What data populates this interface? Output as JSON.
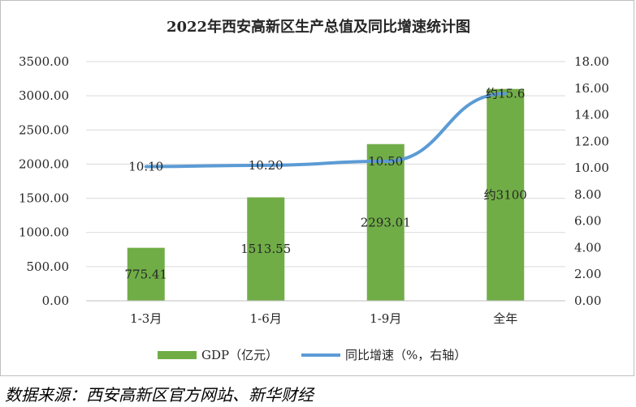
{
  "chart_data": {
    "type": "bar",
    "title": "2022年西安高新区生产总值及同比增速统计图",
    "categories": [
      "1-3月",
      "1-6月",
      "1-9月",
      "全年"
    ],
    "series": [
      {
        "name": "GDP（亿元）",
        "type": "bar",
        "axis": "left",
        "color": "#70ad47",
        "values": [
          775.41,
          1513.55,
          2293.01,
          3100
        ],
        "data_labels": [
          "775.41",
          "1513.55",
          "2293.01",
          "约3100"
        ]
      },
      {
        "name": "同比增速（%，右轴）",
        "type": "line",
        "axis": "right",
        "color": "#5b9bd5",
        "values": [
          10.1,
          10.2,
          10.5,
          15.6
        ],
        "data_labels": [
          "10.10",
          "10.20",
          "10.50",
          "约15.6"
        ]
      }
    ],
    "y_left": {
      "ylim": [
        0,
        3500
      ],
      "ticks": [
        "0.00",
        "500.00",
        "1000.00",
        "1500.00",
        "2000.00",
        "2500.00",
        "3000.00",
        "3500.00"
      ]
    },
    "y_right": {
      "ylim": [
        0,
        18
      ],
      "ticks": [
        "0.00",
        "2.00",
        "4.00",
        "6.00",
        "8.00",
        "10.00",
        "12.00",
        "14.00",
        "16.00",
        "18.00"
      ]
    },
    "grid": true,
    "legend": "bottom"
  },
  "source_note": "数据来源：西安高新区官方网站、新华财经"
}
